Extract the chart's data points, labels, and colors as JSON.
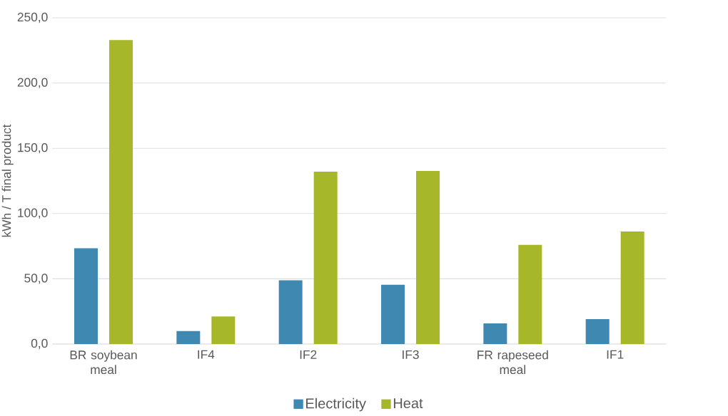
{
  "chart_data": {
    "type": "bar",
    "ylabel": "kWh / T final product",
    "categories": [
      "BR soybean meal",
      "IF4",
      "IF2",
      "IF3",
      "FR rapeseed meal",
      "IF1"
    ],
    "series": [
      {
        "name": "Electricity",
        "color": "#3f88b2",
        "values": [
          73.4,
          9.9,
          48.8,
          45.5,
          15.8,
          19.1
        ]
      },
      {
        "name": "Heat",
        "color": "#a6b829",
        "values": [
          233.0,
          21.2,
          132.1,
          132.7,
          76.0,
          86.2
        ]
      }
    ],
    "ylim": [
      0,
      250
    ],
    "yticks": [
      {
        "value": 0,
        "label": "0,0"
      },
      {
        "value": 50,
        "label": "50,0"
      },
      {
        "value": 100,
        "label": "100,0"
      },
      {
        "value": 150,
        "label": "150,0"
      },
      {
        "value": 200,
        "label": "200,0"
      },
      {
        "value": 250,
        "label": "250,0"
      }
    ],
    "grid": "y",
    "legend": "bottom"
  }
}
